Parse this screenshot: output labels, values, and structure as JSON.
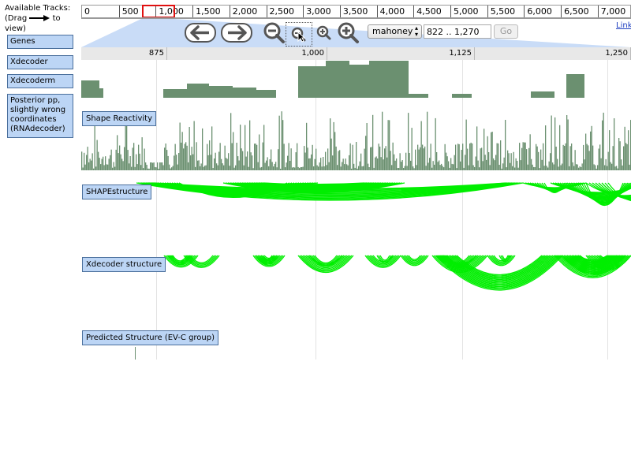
{
  "sidebar": {
    "title_line1": "Available Tracks:",
    "title_line2_a": "(Drag",
    "title_line2_b": "to view)",
    "items": [
      {
        "label": "Genes"
      },
      {
        "label": "Xdecoder"
      },
      {
        "label": "Xdecoderm"
      },
      {
        "label": "Posterior pp, slightly wrong coordinates (RNAdecoder)"
      }
    ]
  },
  "overview": {
    "ticks": [
      "0",
      "500",
      "1,000",
      "1,500",
      "2,000",
      "2,500",
      "3,000",
      "3,500",
      "4,000",
      "4,500",
      "5,000",
      "5,500",
      "6,000",
      "6,500",
      "7,000"
    ]
  },
  "navigation": {
    "location_select_value": "mahoney",
    "location_input_value": "822 .. 1,270",
    "go_label": "Go",
    "link_label": "Link",
    "icons": [
      "left-arrow-icon",
      "right-arrow-icon",
      "zoom-out-large-icon",
      "zoom-out-small-icon",
      "zoom-in-small-icon",
      "zoom-in-large-icon"
    ]
  },
  "detail_ruler": {
    "ticks": [
      "875",
      "1,000",
      "1,125",
      "1,250"
    ]
  },
  "tracks": [
    {
      "label": "Shape Reactivity"
    },
    {
      "label": "SHAPEstructure"
    },
    {
      "label": "Xdecoder structure"
    },
    {
      "label": "Predicted Structure (EV-C group)"
    }
  ],
  "colors": {
    "bar_green": "#6b9070",
    "arc_green": "#00ee00",
    "highlight_red": "#e01010",
    "label_blue": "#bcd5f5"
  }
}
